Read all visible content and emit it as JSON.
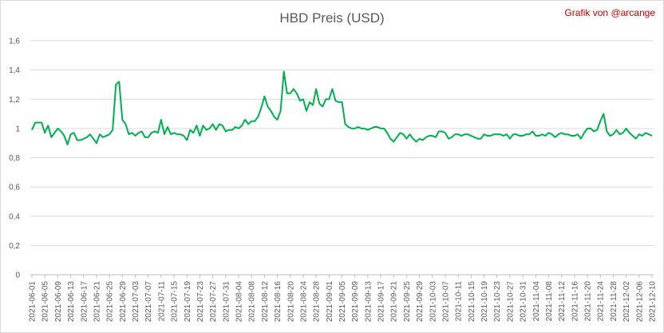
{
  "credit": "Grafik von @arcange",
  "chart_data": {
    "type": "line",
    "title": "HBD Preis (USD)",
    "xlabel": "",
    "ylabel": "",
    "ylim": [
      0,
      1.6
    ],
    "yticks": [
      "0",
      "0,2",
      "0,4",
      "0,6",
      "0,8",
      "1",
      "1,2",
      "1,4",
      "1,6"
    ],
    "xticks": [
      "2021-06-01",
      "2021-06-05",
      "2021-06-09",
      "2021-06-13",
      "2021-06-17",
      "2021-06-21",
      "2021-06-25",
      "2021-06-29",
      "2021-07-03",
      "2021-07-07",
      "2021-07-11",
      "2021-07-15",
      "2021-07-19",
      "2021-07-23",
      "2021-07-27",
      "2021-07-31",
      "2021-08-04",
      "2021-08-08",
      "2021-08-12",
      "2021-08-16",
      "2021-08-20",
      "2021-08-24",
      "2021-08-28",
      "2021-09-01",
      "2021-09-05",
      "2021-09-09",
      "2021-09-13",
      "2021-09-17",
      "2021-09-21",
      "2021-09-25",
      "2021-09-29",
      "2021-10-03",
      "2021-10-07",
      "2021-10-11",
      "2021-10-15",
      "2021-10-19",
      "2021-10-23",
      "2021-10-27",
      "2021-10-31",
      "2021-11-04",
      "2021-11-08",
      "2021-11-12",
      "2021-11-16",
      "2021-11-20",
      "2021-11-24",
      "2021-11-28",
      "2021-12-02",
      "2021-12-06",
      "2021-12-10"
    ],
    "grid": true,
    "legend": "none",
    "line_color": "#00b050",
    "series": [
      {
        "values": [
          0.99,
          1.04,
          1.04,
          1.04,
          0.97,
          1.02,
          0.94,
          0.97,
          1.0,
          0.98,
          0.95,
          0.89,
          0.96,
          0.97,
          0.92,
          0.92,
          0.93,
          0.94,
          0.96,
          0.93,
          0.9,
          0.96,
          0.94,
          0.95,
          0.96,
          0.99,
          1.3,
          1.32,
          1.06,
          1.03,
          0.96,
          0.97,
          0.95,
          0.97,
          0.98,
          0.94,
          0.94,
          0.97,
          0.98,
          0.97,
          1.06,
          0.96,
          1.01,
          0.96,
          0.97,
          0.96,
          0.96,
          0.95,
          0.92,
          0.99,
          0.97,
          1.02,
          0.95,
          1.02,
          0.99,
          1.0,
          1.03,
          0.99,
          1.03,
          1.02,
          0.98,
          0.99,
          0.99,
          1.01,
          1.0,
          1.02,
          1.06,
          1.03,
          1.05,
          1.05,
          1.08,
          1.14,
          1.22,
          1.15,
          1.12,
          1.08,
          1.06,
          1.12,
          1.39,
          1.24,
          1.24,
          1.27,
          1.24,
          1.19,
          1.2,
          1.12,
          1.18,
          1.16,
          1.27,
          1.17,
          1.15,
          1.2,
          1.2,
          1.27,
          1.19,
          1.18,
          1.18,
          1.03,
          1.01,
          1.0,
          1.0,
          1.01,
          1.0,
          1.0,
          0.99,
          1.0,
          1.01,
          1.01,
          1.0,
          1.0,
          0.97,
          0.93,
          0.91,
          0.94,
          0.97,
          0.96,
          0.93,
          0.96,
          0.93,
          0.91,
          0.93,
          0.92,
          0.94,
          0.95,
          0.95,
          0.94,
          0.98,
          0.98,
          0.97,
          0.93,
          0.94,
          0.96,
          0.96,
          0.95,
          0.96,
          0.96,
          0.95,
          0.94,
          0.93,
          0.93,
          0.96,
          0.95,
          0.95,
          0.96,
          0.96,
          0.96,
          0.95,
          0.96,
          0.93,
          0.96,
          0.96,
          0.95,
          0.95,
          0.96,
          0.96,
          0.98,
          0.95,
          0.95,
          0.96,
          0.95,
          0.97,
          0.96,
          0.94,
          0.96,
          0.97,
          0.96,
          0.96,
          0.95,
          0.95,
          0.96,
          0.93,
          0.97,
          1.0,
          1.0,
          0.98,
          0.99,
          1.05,
          1.1,
          0.98,
          0.95,
          0.96,
          0.99,
          0.96,
          0.97,
          1.0,
          0.97,
          0.95,
          0.93,
          0.96,
          0.95,
          0.97,
          0.96,
          0.95
        ]
      }
    ]
  }
}
